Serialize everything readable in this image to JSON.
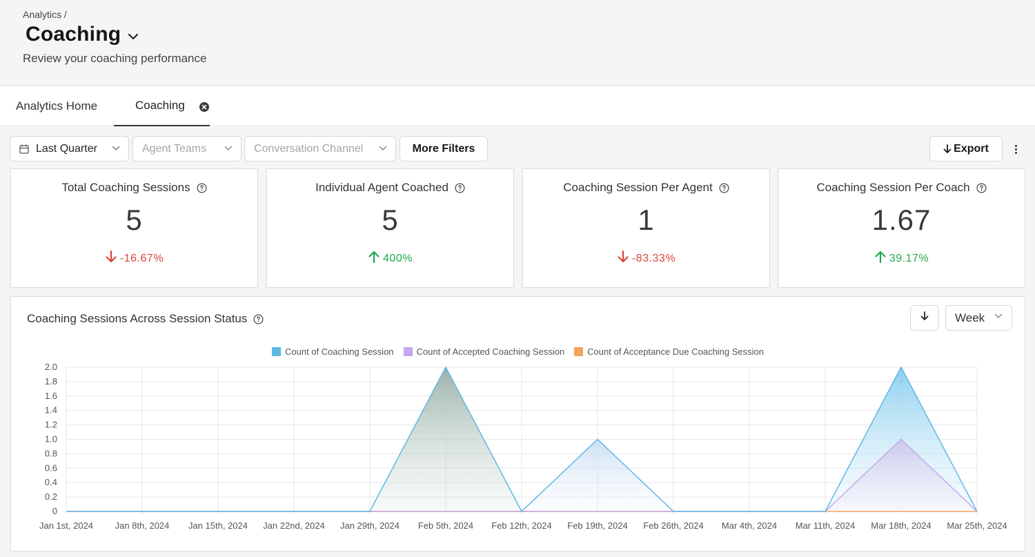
{
  "header": {
    "breadcrumb": "Analytics /",
    "title": "Coaching",
    "subtitle": "Review your coaching performance"
  },
  "tabs": [
    {
      "label": "Analytics Home"
    },
    {
      "label": "Coaching"
    }
  ],
  "filters": {
    "period": "Last Quarter",
    "agent_teams": "Agent Teams",
    "channel": "Conversation Channel",
    "more": "More Filters",
    "export": "Export"
  },
  "cards": [
    {
      "title": "Total Coaching Sessions",
      "value": "5",
      "change": "-16.67%",
      "direction": "down"
    },
    {
      "title": "Individual Agent Coached",
      "value": "5",
      "change": "400%",
      "direction": "up"
    },
    {
      "title": "Coaching Session Per Agent",
      "value": "1",
      "change": "-83.33%",
      "direction": "down"
    },
    {
      "title": "Coaching Session Per Coach",
      "value": "1.67",
      "change": "39.17%",
      "direction": "up"
    }
  ],
  "chart_panel": {
    "title": "Coaching Sessions Across Session Status",
    "granularity": "Week"
  },
  "colors": {
    "negative": "#d9443a",
    "positive": "#1fa84f",
    "series_blue": "#5db8e6",
    "series_purple": "#c4a7f0",
    "series_orange": "#f4a35b"
  },
  "chart_data": {
    "type": "area",
    "x": [
      "Jan 1st, 2024",
      "Jan 8th, 2024",
      "Jan 15th, 2024",
      "Jan 22nd, 2024",
      "Jan 29th, 2024",
      "Feb 5th, 2024",
      "Feb 12th, 2024",
      "Feb 19th, 2024",
      "Feb 26th, 2024",
      "Mar 4th, 2024",
      "Mar 11th, 2024",
      "Mar 18th, 2024",
      "Mar 25th, 2024"
    ],
    "series": [
      {
        "name": "Count of Coaching Session",
        "color": "#5db8e6",
        "values": [
          0,
          0,
          0,
          0,
          0,
          2,
          0,
          1,
          0,
          0,
          0,
          2,
          0
        ]
      },
      {
        "name": "Count of Accepted Coaching Session",
        "color": "#c4a7f0",
        "values": [
          0,
          0,
          0,
          0,
          0,
          0,
          0,
          0,
          0,
          0,
          0,
          1,
          0
        ]
      },
      {
        "name": "Count of Acceptance Due Coaching Session",
        "color": "#f4a35b",
        "values": [
          0,
          0,
          0,
          0,
          0,
          0,
          0,
          0,
          0,
          0,
          0,
          0,
          0
        ]
      }
    ],
    "yticks": [
      "0",
      "0.2",
      "0.4",
      "0.6",
      "0.8",
      "1.0",
      "1.2",
      "1.4",
      "1.6",
      "1.8",
      "2.0"
    ],
    "ylim": [
      0,
      2
    ],
    "grid": true,
    "legend": "top-center"
  }
}
